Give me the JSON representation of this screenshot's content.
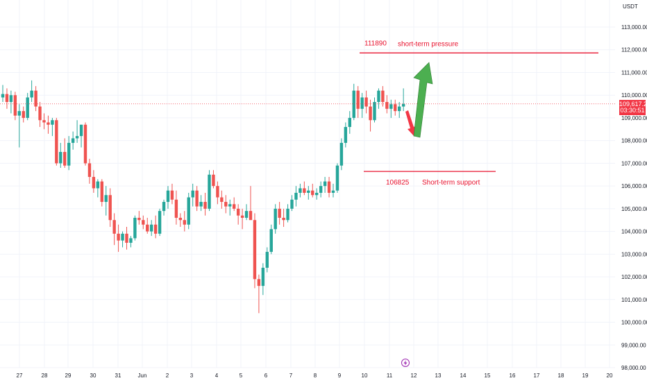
{
  "currency": "USDT",
  "current_price": "109,617.22",
  "countdown": "03:30:51",
  "colors": {
    "up": "#26a69a",
    "down": "#ef5350",
    "annotation": "#e8112d",
    "arrow_up": "#4caf50",
    "arrow_down": "#f23645",
    "grid": "#f0f3fa",
    "axis_text": "#131722"
  },
  "annotations": {
    "resistance": {
      "value": "111890",
      "label": "short-term pressure",
      "price": 111890
    },
    "support": {
      "value": "106825",
      "label": "Short-term support",
      "price": 106825
    }
  },
  "lightning_icon": "lightning-icon",
  "chart_data": {
    "type": "candlestick",
    "title": "",
    "xlabel": "",
    "ylabel": "",
    "ylim": [
      97800,
      113600
    ],
    "y_ticks": [
      "113,000.00",
      "112,000.00",
      "111,000.00",
      "110,000.00",
      "109,000.00",
      "108,000.00",
      "107,000.00",
      "106,000.00",
      "105,000.00",
      "104,000.00",
      "103,000.00",
      "102,000.00",
      "101,000.00",
      "100,000.00",
      "99,000.00",
      "98,000.00"
    ],
    "x_ticks": [
      "27",
      "28",
      "29",
      "30",
      "31",
      "Jun",
      "2",
      "3",
      "4",
      "5",
      "6",
      "7",
      "8",
      "9",
      "10",
      "11",
      "12",
      "13",
      "14",
      "15",
      "16",
      "17",
      "18",
      "19",
      "20"
    ],
    "candles_ohlc": [
      [
        109900,
        110450,
        109700,
        110050
      ],
      [
        110050,
        110300,
        109400,
        109700
      ],
      [
        109700,
        110200,
        109200,
        110000
      ],
      [
        110000,
        110150,
        108900,
        109100
      ],
      [
        109100,
        109600,
        107700,
        109300
      ],
      [
        109300,
        109500,
        108800,
        109000
      ],
      [
        109000,
        110100,
        108900,
        109900
      ],
      [
        109900,
        110650,
        109700,
        110200
      ],
      [
        110200,
        110400,
        109300,
        109500
      ],
      [
        109500,
        109700,
        108600,
        108900
      ],
      [
        108900,
        109200,
        108500,
        108800
      ],
      [
        108800,
        109100,
        108300,
        108700
      ],
      [
        108700,
        109000,
        108200,
        108900
      ],
      [
        108900,
        109000,
        106900,
        107000
      ],
      [
        107000,
        107900,
        106800,
        107500
      ],
      [
        107500,
        108100,
        106800,
        106900
      ],
      [
        106900,
        108200,
        106700,
        107900
      ],
      [
        107900,
        108400,
        107600,
        108100
      ],
      [
        108100,
        108900,
        107900,
        108200
      ],
      [
        108200,
        108700,
        107700,
        108700
      ],
      [
        108700,
        108800,
        106900,
        107000
      ],
      [
        107000,
        107200,
        106100,
        106400
      ],
      [
        106400,
        106700,
        105700,
        105900
      ],
      [
        105900,
        106300,
        105500,
        106200
      ],
      [
        106200,
        106300,
        105100,
        105300
      ],
      [
        105300,
        106000,
        104700,
        105600
      ],
      [
        105600,
        105900,
        104200,
        104500
      ],
      [
        104500,
        104800,
        103400,
        103900
      ],
      [
        103900,
        104300,
        103100,
        103600
      ],
      [
        103600,
        104000,
        103300,
        103900
      ],
      [
        103900,
        104200,
        103200,
        103500
      ],
      [
        103500,
        103800,
        103300,
        103700
      ],
      [
        103700,
        104700,
        103600,
        104600
      ],
      [
        104600,
        104900,
        104300,
        104500
      ],
      [
        104500,
        104700,
        104100,
        104300
      ],
      [
        104300,
        104600,
        103900,
        104000
      ],
      [
        104000,
        104500,
        103800,
        104300
      ],
      [
        104300,
        104700,
        103700,
        103900
      ],
      [
        103900,
        105000,
        103800,
        104900
      ],
      [
        104900,
        105400,
        104700,
        105300
      ],
      [
        105300,
        106000,
        105000,
        105800
      ],
      [
        105800,
        106100,
        105200,
        105400
      ],
      [
        105400,
        105800,
        104300,
        104600
      ],
      [
        104600,
        104800,
        104200,
        104500
      ],
      [
        104500,
        104900,
        104000,
        104300
      ],
      [
        104300,
        105700,
        104100,
        105500
      ],
      [
        105500,
        106100,
        105100,
        105800
      ],
      [
        105800,
        106000,
        104900,
        105100
      ],
      [
        105100,
        105600,
        104900,
        105300
      ],
      [
        105300,
        105700,
        104700,
        105000
      ],
      [
        105000,
        106700,
        104900,
        106500
      ],
      [
        106500,
        106700,
        105900,
        106000
      ],
      [
        106000,
        106200,
        105200,
        105500
      ],
      [
        105500,
        105800,
        105000,
        105300
      ],
      [
        105300,
        105600,
        104800,
        105100
      ],
      [
        105100,
        105400,
        104700,
        105200
      ],
      [
        105200,
        105500,
        104900,
        105000
      ],
      [
        105000,
        105200,
        104300,
        104700
      ],
      [
        104700,
        105000,
        104100,
        104600
      ],
      [
        104600,
        105200,
        104500,
        104900
      ],
      [
        104900,
        106000,
        104700,
        104500
      ],
      [
        104500,
        104800,
        101500,
        101900
      ],
      [
        101900,
        102100,
        100400,
        101600
      ],
      [
        101600,
        102600,
        101200,
        102400
      ],
      [
        102400,
        103300,
        102200,
        103100
      ],
      [
        103100,
        104300,
        103000,
        104100
      ],
      [
        104100,
        105200,
        103900,
        105000
      ],
      [
        105000,
        105300,
        104300,
        104600
      ],
      [
        104600,
        105000,
        104200,
        104500
      ],
      [
        104500,
        105200,
        104400,
        105000
      ],
      [
        105000,
        105600,
        104900,
        105400
      ],
      [
        105400,
        106000,
        105100,
        105700
      ],
      [
        105700,
        106100,
        105500,
        105900
      ],
      [
        105900,
        106200,
        105600,
        105700
      ],
      [
        105700,
        106000,
        105400,
        105800
      ],
      [
        105800,
        106100,
        105500,
        105600
      ],
      [
        105600,
        105900,
        105400,
        105700
      ],
      [
        105700,
        106200,
        105500,
        106000
      ],
      [
        106000,
        106400,
        105700,
        106200
      ],
      [
        106200,
        106400,
        105500,
        105700
      ],
      [
        105700,
        106100,
        105500,
        105800
      ],
      [
        105800,
        107000,
        105700,
        106900
      ],
      [
        106900,
        108100,
        106700,
        107900
      ],
      [
        107900,
        108800,
        107700,
        108600
      ],
      [
        108600,
        109300,
        108300,
        109000
      ],
      [
        109000,
        110500,
        108900,
        110200
      ],
      [
        110200,
        110400,
        109000,
        109400
      ],
      [
        109400,
        110100,
        109000,
        109900
      ],
      [
        109900,
        110200,
        109200,
        109500
      ],
      [
        109500,
        109800,
        108400,
        108900
      ],
      [
        108900,
        109900,
        108800,
        109700
      ],
      [
        109700,
        110300,
        109400,
        110200
      ],
      [
        110200,
        110400,
        109500,
        109700
      ],
      [
        109700,
        110000,
        109200,
        109400
      ],
      [
        109400,
        109800,
        109000,
        109600
      ],
      [
        109600,
        109800,
        109100,
        109300
      ],
      [
        109300,
        109700,
        109000,
        109500
      ],
      [
        109500,
        110300,
        109300,
        109617
      ]
    ]
  }
}
